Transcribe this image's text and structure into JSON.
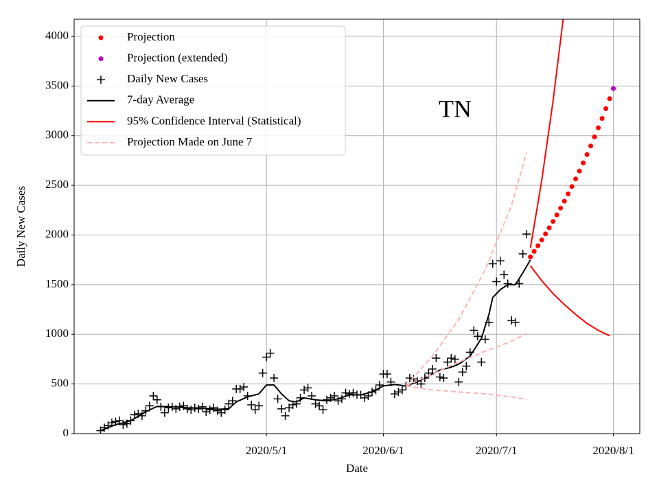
{
  "chart_data": {
    "type": "line",
    "annotation": "TN",
    "xlabel": "Date",
    "ylabel": "Daily New Cases",
    "xlim": [
      "2020/3/11",
      "2020/8/8"
    ],
    "xticks": [
      "2020/5/1",
      "2020/6/1",
      "2020/7/1",
      "2020/8/1"
    ],
    "ylim": [
      0,
      4173
    ],
    "yticks": [
      0,
      500,
      1000,
      1500,
      2000,
      2500,
      3000,
      3500,
      4000
    ],
    "grid": true,
    "legend": "upper left",
    "series": [
      {
        "name": "Projection",
        "color": "#ff0000",
        "marker": "o",
        "x": [
          "2020/7/10",
          "2020/7/11",
          "2020/7/12",
          "2020/7/13",
          "2020/7/14",
          "2020/7/15",
          "2020/7/16",
          "2020/7/17",
          "2020/7/18",
          "2020/7/19",
          "2020/7/20",
          "2020/7/21",
          "2020/7/22",
          "2020/7/23",
          "2020/7/24",
          "2020/7/25",
          "2020/7/26",
          "2020/7/27",
          "2020/7/28",
          "2020/7/29",
          "2020/7/30",
          "2020/7/31"
        ],
        "values": [
          1780,
          1835,
          1892,
          1950,
          2011,
          2073,
          2137,
          2203,
          2271,
          2341,
          2414,
          2488,
          2565,
          2644,
          2726,
          2810,
          2897,
          2987,
          3079,
          3174,
          3272,
          3373
        ]
      },
      {
        "name": "Projection (extended)",
        "color": "#bf00bf",
        "marker": "o",
        "x": [
          "2020/8/1"
        ],
        "values": [
          3475
        ]
      },
      {
        "name": "Daily New Cases",
        "color": "#000000",
        "marker": "+",
        "x": [
          "2020/3/18",
          "2020/3/19",
          "2020/3/20",
          "2020/3/21",
          "2020/3/22",
          "2020/3/23",
          "2020/3/24",
          "2020/3/25",
          "2020/3/26",
          "2020/3/27",
          "2020/3/28",
          "2020/3/29",
          "2020/3/30",
          "2020/3/31",
          "2020/4/1",
          "2020/4/2",
          "2020/4/3",
          "2020/4/4",
          "2020/4/5",
          "2020/4/6",
          "2020/4/7",
          "2020/4/8",
          "2020/4/9",
          "2020/4/10",
          "2020/4/11",
          "2020/4/12",
          "2020/4/13",
          "2020/4/14",
          "2020/4/15",
          "2020/4/16",
          "2020/4/17",
          "2020/4/18",
          "2020/4/19",
          "2020/4/20",
          "2020/4/21",
          "2020/4/22",
          "2020/4/23",
          "2020/4/24",
          "2020/4/25",
          "2020/4/26",
          "2020/4/27",
          "2020/4/28",
          "2020/4/29",
          "2020/4/30",
          "2020/5/1",
          "2020/5/2",
          "2020/5/3",
          "2020/5/4",
          "2020/5/5",
          "2020/5/6",
          "2020/5/7",
          "2020/5/8",
          "2020/5/9",
          "2020/5/10",
          "2020/5/11",
          "2020/5/12",
          "2020/5/13",
          "2020/5/14",
          "2020/5/15",
          "2020/5/16",
          "2020/5/17",
          "2020/5/18",
          "2020/5/19",
          "2020/5/20",
          "2020/5/21",
          "2020/5/22",
          "2020/5/23",
          "2020/5/24",
          "2020/5/25",
          "2020/5/26",
          "2020/5/27",
          "2020/5/28",
          "2020/5/29",
          "2020/5/30",
          "2020/5/31",
          "2020/6/1",
          "2020/6/2",
          "2020/6/3",
          "2020/6/4",
          "2020/6/5",
          "2020/6/6",
          "2020/6/7",
          "2020/6/8",
          "2020/6/9",
          "2020/6/10",
          "2020/6/11",
          "2020/6/12",
          "2020/6/13",
          "2020/6/14",
          "2020/6/15",
          "2020/6/16",
          "2020/6/17",
          "2020/6/18",
          "2020/6/19",
          "2020/6/20",
          "2020/6/21",
          "2020/6/22",
          "2020/6/23",
          "2020/6/24",
          "2020/6/25",
          "2020/6/26",
          "2020/6/27",
          "2020/6/28",
          "2020/6/29",
          "2020/6/30",
          "2020/7/1",
          "2020/7/2",
          "2020/7/3",
          "2020/7/4",
          "2020/7/5",
          "2020/7/6",
          "2020/7/7",
          "2020/7/8",
          "2020/7/9"
        ],
        "values": [
          30,
          60,
          80,
          110,
          120,
          130,
          90,
          100,
          130,
          190,
          200,
          180,
          230,
          280,
          380,
          340,
          270,
          210,
          260,
          270,
          250,
          270,
          280,
          250,
          240,
          260,
          250,
          270,
          220,
          240,
          260,
          230,
          210,
          240,
          300,
          330,
          450,
          450,
          470,
          380,
          290,
          240,
          280,
          610,
          770,
          810,
          560,
          350,
          250,
          180,
          260,
          290,
          300,
          360,
          440,
          460,
          380,
          300,
          280,
          240,
          340,
          360,
          380,
          330,
          350,
          410,
          400,
          410,
          390,
          390,
          360,
          380,
          420,
          440,
          490,
          600,
          600,
          520,
          400,
          420,
          440,
          480,
          560,
          550,
          530,
          500,
          560,
          610,
          650,
          760,
          570,
          560,
          720,
          760,
          750,
          520,
          620,
          680,
          820,
          1040,
          980,
          720,
          950,
          1120,
          1710,
          1530,
          1740,
          1600,
          1510,
          1140,
          1120,
          1510,
          1810,
          2010
        ]
      },
      {
        "name": "7-day Average",
        "color": "#000000",
        "linestyle": "solid",
        "x": [
          "2020/3/18",
          "2020/3/22",
          "2020/3/26",
          "2020/3/30",
          "2020/4/2",
          "2020/4/6",
          "2020/4/10",
          "2020/4/14",
          "2020/4/18",
          "2020/4/21",
          "2020/4/23",
          "2020/4/26",
          "2020/4/29",
          "2020/5/1",
          "2020/5/3",
          "2020/5/5",
          "2020/5/7",
          "2020/5/9",
          "2020/5/11",
          "2020/5/14",
          "2020/5/17",
          "2020/5/20",
          "2020/5/23",
          "2020/5/26",
          "2020/5/29",
          "2020/6/1",
          "2020/6/4",
          "2020/6/7",
          "2020/6/10",
          "2020/6/13",
          "2020/6/16",
          "2020/6/19",
          "2020/6/21",
          "2020/6/24",
          "2020/6/27",
          "2020/6/29",
          "2020/6/30",
          "2020/7/2",
          "2020/7/4",
          "2020/7/6",
          "2020/7/8",
          "2020/7/10"
        ],
        "values": [
          30,
          90,
          130,
          220,
          275,
          270,
          260,
          255,
          245,
          250,
          320,
          370,
          400,
          490,
          490,
          400,
          330,
          320,
          360,
          340,
          330,
          350,
          390,
          390,
          420,
          480,
          495,
          480,
          520,
          580,
          640,
          670,
          700,
          780,
          960,
          1200,
          1370,
          1450,
          1500,
          1500,
          1620,
          1750
        ]
      },
      {
        "name": "95% Confidence Interval (Statistical)",
        "color": "#ff0000",
        "linestyle": "solid",
        "x": [
          "2020/7/10",
          "2020/7/13",
          "2020/7/16",
          "2020/7/19",
          "2020/7/22",
          "2020/7/25",
          "2020/7/28",
          "2020/7/31"
        ],
        "upper": [
          1870,
          2550,
          3350,
          4270,
          null,
          null,
          null,
          null
        ],
        "lower": [
          1690,
          1540,
          1410,
          1300,
          1200,
          1110,
          1040,
          985
        ]
      },
      {
        "name": "Projection Made on June 7",
        "color": "#ffb3b3",
        "linestyle": "dashed",
        "x": [
          "2020/6/7",
          "2020/6/14",
          "2020/6/21",
          "2020/6/28",
          "2020/7/5",
          "2020/7/9"
        ],
        "upper": [
          480,
          780,
          1150,
          1650,
          2300,
          2830
        ],
        "values": [
          480,
          600,
          720,
          830,
          930,
          1010
        ],
        "lower": [
          480,
          440,
          420,
          400,
          370,
          345
        ]
      }
    ]
  }
}
